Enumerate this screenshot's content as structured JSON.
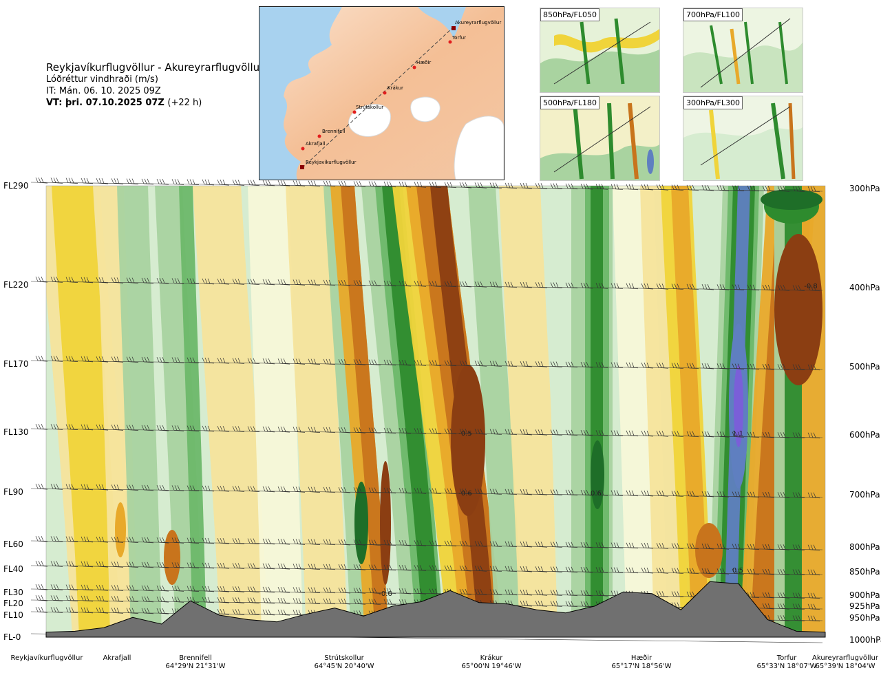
{
  "header": {
    "route": "Reykjavíkurflugvöllur - Akureyrarflugvöllur",
    "parameter": "Lóðréttur vindhraði (m/s)",
    "initial_time": "IT: Mán. 06. 10. 2025 09Z",
    "valid_prefix": "VT: þri. 07.10.2025 07Z",
    "valid_suffix": "(+22 h)"
  },
  "map": {
    "waypoints": [
      "Reykjavíkurflugvöllur",
      "Akrafjall",
      "Brennifell",
      "Strútskollur",
      "Krákur",
      "Hæðir",
      "Torfur",
      "Akureyrarflugvöllur"
    ]
  },
  "mini_maps": [
    "850hPa/FL050",
    "700hPa/FL100",
    "500hPa/FL180",
    "300hPa/FL300"
  ],
  "left_levels": [
    "FL290",
    "FL220",
    "FL170",
    "FL130",
    "FL90",
    "FL60",
    "FL40",
    "FL30",
    "FL20",
    "FL10",
    "FL-0"
  ],
  "right_levels": [
    "300hPa",
    "400hPa",
    "500hPa",
    "600hPa",
    "700hPa",
    "800hPa",
    "850hPa",
    "900hPa",
    "925hPa",
    "950hPa",
    "1000hPa"
  ],
  "stations": [
    {
      "name": "Reykjavíkurflugvöllur",
      "coord": ""
    },
    {
      "name": "Akrafjall",
      "coord": ""
    },
    {
      "name": "Brennifell",
      "coord": "64°29'N 21°31'W"
    },
    {
      "name": "Strútskollur",
      "coord": "64°45'N 20°40'W"
    },
    {
      "name": "Krákur",
      "coord": "65°00'N 19°46'W"
    },
    {
      "name": "Hæðir",
      "coord": "65°17'N 18°56'W"
    },
    {
      "name": "Torfur",
      "coord": "65°33'N 18°07'W"
    },
    {
      "name": "Akureyrarflugvöllur",
      "coord": "65°39'N 18°04'W"
    }
  ],
  "colors": {
    "down_strong": "#8b3e12",
    "down_medium": "#c8741c",
    "down_light": "#e8a92a",
    "down_weak": "#f0d43a",
    "down_faint": "#f5e49c",
    "neutral": "#f7f8d8",
    "up_faint": "#d6ecd0",
    "up_weak": "#a9d3a0",
    "up_light": "#6db86a",
    "up_medium": "#2e8b2e",
    "up_strong": "#1e6e28",
    "up_extreme": "#5f7fc0",
    "up_peak": "#7a5fd8",
    "terrain": "#707070"
  },
  "chart_data": {
    "type": "heatmap",
    "title": "",
    "xlabel": "",
    "ylabel": "",
    "variable": "vertical velocity (m/s)",
    "x_categories": [
      "Reykjavíkurflugvöllur",
      "Akrafjall",
      "Brennifell",
      "Strútskollur",
      "Krákur",
      "Hæðir",
      "Torfur",
      "Akureyrarflugvöllur"
    ],
    "y_levels_fl": [
      "FL290",
      "FL220",
      "FL170",
      "FL130",
      "FL90",
      "FL60",
      "FL40",
      "FL30",
      "FL20",
      "FL10",
      "FL-0"
    ],
    "y_levels_hpa": [
      "300hPa",
      "400hPa",
      "500hPa",
      "600hPa",
      "700hPa",
      "800hPa",
      "850hPa",
      "900hPa",
      "925hPa",
      "950hPa",
      "1000hPa"
    ],
    "extrema_labels": [
      {
        "text": "-0.8",
        "level": "400hPa",
        "near": "Akureyrarflugvöllur"
      },
      {
        "text": "-0.5",
        "level": "600hPa",
        "near": "Krákur"
      },
      {
        "text": "1.1",
        "level": "600hPa",
        "near": "Torfur"
      },
      {
        "text": "-0.6",
        "level": "700hPa",
        "near": "Krákur"
      },
      {
        "text": "0.6",
        "level": "700hPa",
        "near": "Hæðir"
      },
      {
        "text": "0.5",
        "level": "850hPa",
        "near": "Torfur"
      },
      {
        "text": "-0.6",
        "level": "900hPa",
        "near": "Strútskollur"
      }
    ],
    "terrain_profile_m": [
      20,
      40,
      120,
      350,
      200,
      720,
      400,
      300,
      250,
      420,
      560,
      380,
      600,
      700,
      950,
      680,
      650,
      520,
      450,
      600,
      920,
      880,
      520,
      1150,
      1100,
      300,
      40,
      20
    ]
  }
}
